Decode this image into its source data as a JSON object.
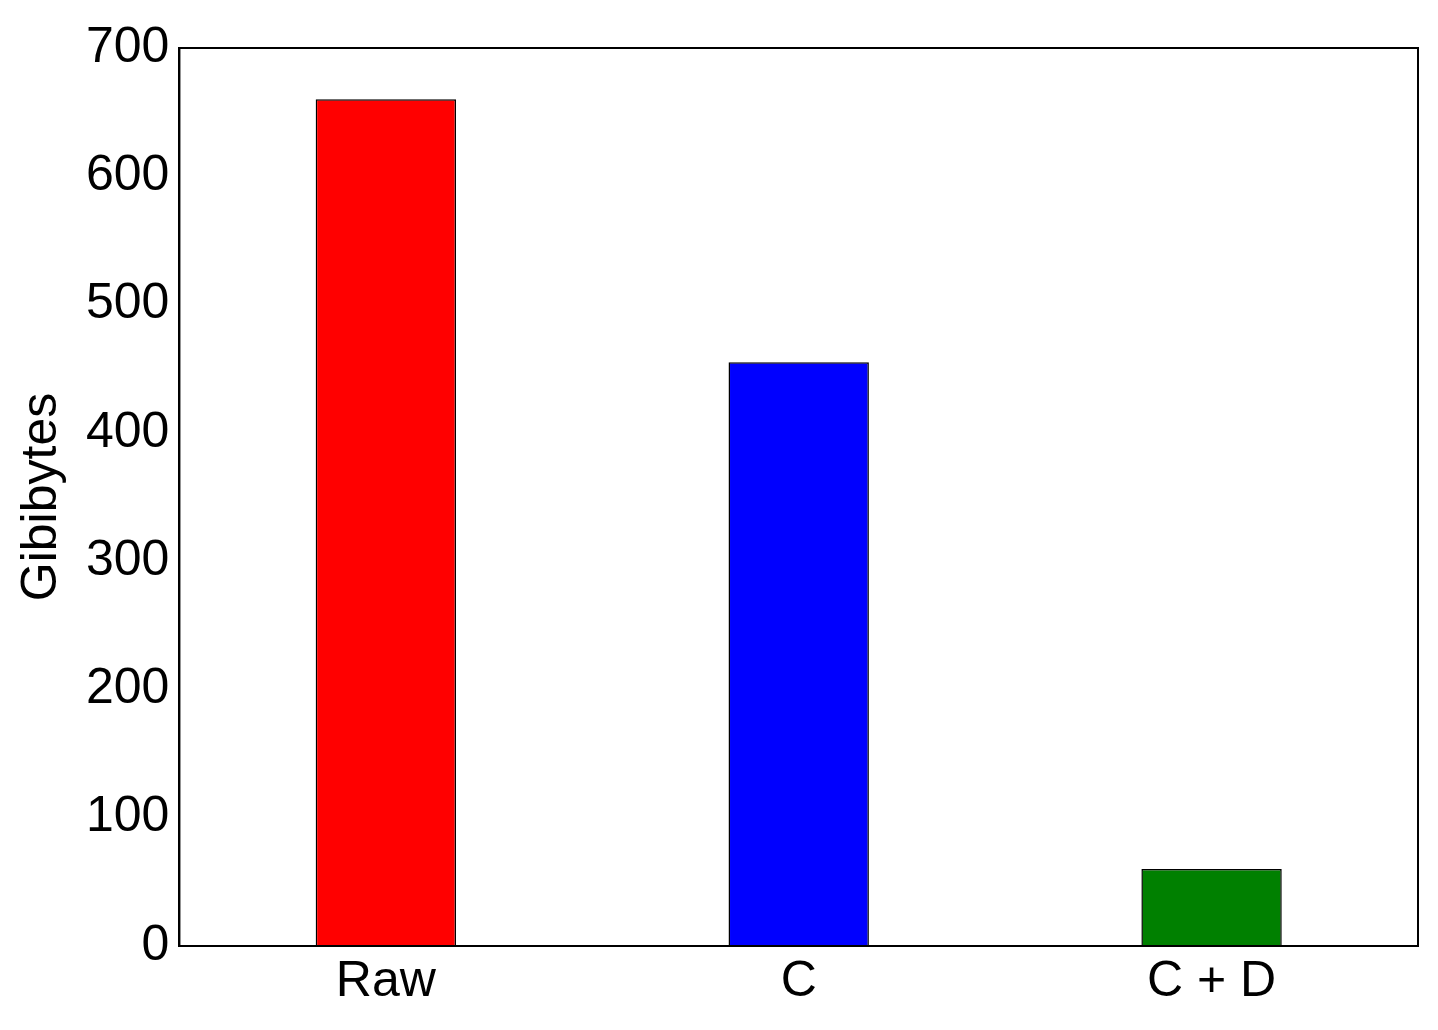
{
  "chart_data": {
    "type": "bar",
    "ylabel": "Gibibytes",
    "categories": [
      "Raw",
      "C",
      "C + D"
    ],
    "values": [
      660,
      455,
      60
    ],
    "colors": [
      "#ff0000",
      "#0000ff",
      "#008000"
    ],
    "ylim": [
      0,
      700
    ],
    "yticks": [
      0,
      100,
      200,
      300,
      400,
      500,
      600,
      700
    ],
    "grid": false,
    "legend": false
  }
}
